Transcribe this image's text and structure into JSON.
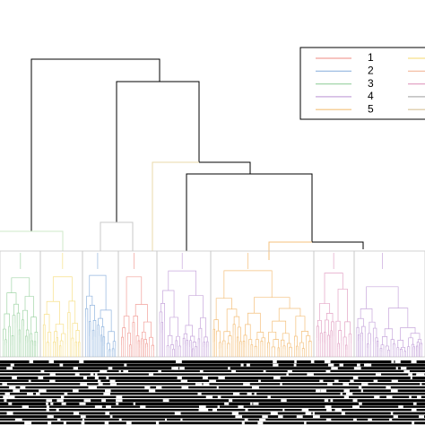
{
  "legend": {
    "items": [
      {
        "label": "1",
        "color": "#f2a09a"
      },
      {
        "label": "2",
        "color": "#93b6df"
      },
      {
        "label": "3",
        "color": "#a3d6a9"
      },
      {
        "label": "4",
        "color": "#c7a7dc"
      },
      {
        "label": "5",
        "color": "#f4c07c"
      }
    ],
    "extra_colors": [
      "#f7e08a",
      "#f2b79a",
      "#e3a4c6",
      "#b0b0b0",
      "#d8c39a"
    ]
  }
}
